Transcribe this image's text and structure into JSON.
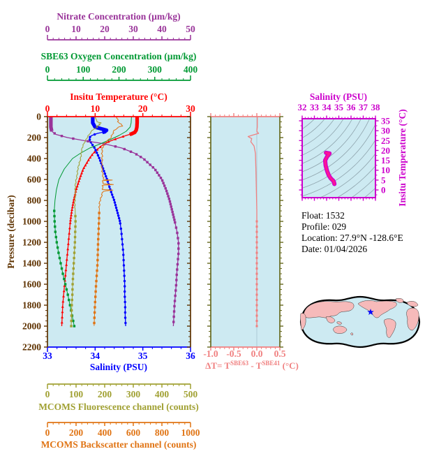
{
  "colors": {
    "background": "#ffffff",
    "plot_bg": "#cdeaf2",
    "nitrate": "#993399",
    "oxygen": "#009933",
    "temperature": "#ff0000",
    "salinity": "#0000ff",
    "pressure": "#5e3200",
    "fluorescence": "#a0a032",
    "backscatter": "#e07414",
    "delta_t": "#f08080",
    "mid_frame_sides": "#66691e",
    "zero_ref_line": "#aac8d4",
    "ts_axis": "#cc00cc",
    "ts_curve_core": "#ff1493",
    "ts_curve_edge": "#cc00cc",
    "ts_contour": "#8fa4ad",
    "land": "#f6baba",
    "ocean": "#cdeaf2",
    "map_outline": "#000000",
    "star": "#0000ff",
    "info_text": "#000000"
  },
  "axes": {
    "nitrate": {
      "title": "Nitrate Concentration (µm/kg)",
      "tick_labels": [
        "0",
        "10",
        "20",
        "30",
        "40",
        "50"
      ],
      "min": 0,
      "max": 50
    },
    "oxygen": {
      "title": "SBE63 Oxygen Concentration (µm/kg)",
      "tick_labels": [
        "0",
        "100",
        "200",
        "300",
        "400"
      ],
      "min": 0,
      "max": 400
    },
    "temperature": {
      "title": "Insitu Temperature (°C)",
      "tick_labels": [
        "0",
        "10",
        "20",
        "30"
      ],
      "min": 0,
      "max": 30
    },
    "salinity": {
      "title": "Salinity (PSU)",
      "tick_labels": [
        "33",
        "34",
        "35",
        "36"
      ],
      "min": 33,
      "max": 36
    },
    "pressure": {
      "title": "Pressure (decibar)",
      "tick_labels": [
        "0",
        "200",
        "400",
        "600",
        "800",
        "1000",
        "1200",
        "1400",
        "1600",
        "1800",
        "2000",
        "2200"
      ],
      "min": 0,
      "max": 2200
    },
    "fluorescence": {
      "title": "MCOMS Fluorescence channel (counts)",
      "tick_labels": [
        "0",
        "100",
        "200",
        "300",
        "400",
        "500"
      ],
      "min": 0,
      "max": 500
    },
    "backscatter": {
      "title": "MCOMS Backscatter channel (counts)",
      "tick_labels": [
        "0",
        "200",
        "400",
        "600",
        "800",
        "1000"
      ],
      "min": 0,
      "max": 1000
    },
    "delta_t": {
      "title_prefix": "ΔT= T",
      "title_sup1": "SBE63",
      "title_mid": " - T",
      "title_sup2": "SBE41",
      "title_suffix": " (°C)",
      "tick_labels": [
        "-1.0",
        "-0.5",
        "0.0",
        "0.5"
      ],
      "min": -1.0,
      "max": 0.5
    },
    "ts_salinity": {
      "title": "Salinity (PSU)",
      "tick_labels": [
        "32",
        "33",
        "34",
        "35",
        "36",
        "37",
        "38"
      ],
      "min": 32,
      "max": 38
    },
    "ts_temperature": {
      "title": "Insitu Temperature (°C)",
      "tick_labels": [
        "0",
        "5",
        "10",
        "15",
        "20",
        "25",
        "30",
        "35"
      ],
      "min": 0,
      "max": 35
    }
  },
  "float_info": {
    "line1": "Float:  1532",
    "line2": "Profile:  029",
    "line3": "Location:  27.9°N  -128.6°E",
    "line4": "Date:  01/04/2026"
  },
  "map": {
    "marker": "star",
    "marker_note": "float position 27.9N -128.6E"
  },
  "chart_data": [
    {
      "type": "line",
      "title": "Float 1532 profile 029 — properties vs pressure",
      "ylabel": "Pressure (decibar)",
      "ylim": [
        0,
        2200
      ],
      "series": [
        {
          "name": "Insitu Temperature",
          "axis": "temperature",
          "marker": "triangle",
          "pressure": [
            0,
            60,
            100,
            130,
            150,
            165,
            180,
            200,
            220,
            240,
            270,
            300,
            350,
            400,
            500,
            600,
            700,
            800,
            900,
            1000,
            1100,
            1200,
            1300,
            1400,
            1500,
            1600,
            1700,
            1800,
            1900,
            2000
          ],
          "values": [
            18.8,
            18.8,
            18.75,
            18.6,
            18.3,
            17.6,
            16.5,
            15.2,
            13.9,
            12.8,
            11.6,
            10.8,
            9.6,
            8.8,
            7.5,
            6.7,
            6.0,
            5.5,
            5.1,
            4.8,
            4.6,
            4.4,
            4.2,
            4.0,
            3.8,
            3.6,
            3.4,
            3.2,
            3.1,
            3.0
          ]
        },
        {
          "name": "Salinity",
          "axis": "salinity",
          "marker": "circle",
          "pressure": [
            0,
            60,
            100,
            115,
            130,
            145,
            160,
            180,
            200,
            230,
            260,
            300,
            350,
            400,
            500,
            600,
            700,
            800,
            900,
            1000,
            1100,
            1200,
            1300,
            1400,
            1500,
            1600,
            1700,
            1800,
            1900,
            2000
          ],
          "values": [
            33.95,
            33.95,
            34.0,
            34.12,
            34.24,
            34.2,
            34.05,
            33.93,
            33.88,
            33.89,
            33.93,
            33.99,
            34.04,
            34.09,
            34.17,
            34.25,
            34.32,
            34.4,
            34.46,
            34.52,
            34.55,
            34.57,
            34.59,
            34.6,
            34.61,
            34.62,
            34.62,
            34.63,
            34.63,
            34.64
          ]
        },
        {
          "name": "Nitrate",
          "axis": "nitrate",
          "marker": "square",
          "pressure": [
            0,
            60,
            100,
            140,
            170,
            200,
            230,
            260,
            300,
            350,
            400,
            500,
            600,
            700,
            800,
            900,
            1000,
            1100,
            1200,
            1300,
            1400,
            1500,
            1600,
            1700,
            1800,
            1900,
            2000
          ],
          "values": [
            1.2,
            1.2,
            1.2,
            1.5,
            3.0,
            7.0,
            13.0,
            20.0,
            26.0,
            30.5,
            33.5,
            37.5,
            40.0,
            41.5,
            42.7,
            43.6,
            44.5,
            45.3,
            45.8,
            45.8,
            45.5,
            45.2,
            45.0,
            44.7,
            44.4,
            44.2,
            44.0
          ]
        },
        {
          "name": "SBE63 Oxygen",
          "axis": "oxygen",
          "marker": "square",
          "pressure": [
            0,
            60,
            100,
            140,
            180,
            220,
            260,
            300,
            350,
            400,
            500,
            600,
            700,
            800,
            900,
            1000,
            1100,
            1200,
            1300,
            1400,
            1500,
            1600,
            1700,
            1800,
            1900,
            2000
          ],
          "values": [
            235,
            234,
            231,
            220,
            200,
            175,
            148,
            118,
            92,
            70,
            47,
            32,
            25,
            21,
            19,
            20,
            22,
            26,
            31,
            37,
            43,
            50,
            57,
            63,
            69,
            75
          ]
        },
        {
          "name": "MCOMS Fluorescence",
          "axis": "fluorescence",
          "marker": "square",
          "pressure": [
            0,
            40,
            55,
            62,
            70,
            80,
            90,
            100,
            115,
            130,
            160,
            200,
            250,
            300,
            350,
            400,
            500,
            600,
            700,
            800,
            900,
            1000,
            1100,
            1200,
            1300,
            1400,
            1500,
            1600,
            1700,
            1800,
            1900,
            2000
          ],
          "values": [
            168,
            170,
            178,
            192,
            174,
            186,
            170,
            179,
            164,
            158,
            149,
            138,
            128,
            122,
            118,
            115,
            107,
            100,
            97,
            96,
            97,
            98,
            97,
            96,
            94,
            92,
            90,
            88,
            87,
            85,
            84,
            83
          ]
        },
        {
          "name": "MCOMS Backscatter",
          "axis": "backscatter",
          "marker": "square",
          "pressure": [
            0,
            50,
            90,
            100,
            130,
            160,
            200,
            250,
            300,
            350,
            400,
            500,
            600,
            606,
            612,
            641,
            648,
            655,
            697,
            703,
            710,
            800,
            900,
            1000,
            1100,
            1200,
            1300,
            1400,
            1500,
            1600,
            1700,
            1800,
            1900,
            2000
          ],
          "values": [
            485,
            492,
            526,
            498,
            470,
            458,
            442,
            400,
            386,
            382,
            380,
            383,
            388,
            458,
            386,
            386,
            464,
            386,
            388,
            470,
            386,
            368,
            362,
            360,
            357,
            354,
            352,
            350,
            345,
            340,
            336,
            332,
            329,
            326
          ]
        }
      ]
    },
    {
      "type": "line",
      "title": "Temperature difference SBE63 - SBE41 vs pressure",
      "xlabel": "ΔT (°C)",
      "xlim": [
        -1.0,
        0.5
      ],
      "pressure": [
        0,
        100,
        140,
        160,
        175,
        190,
        210,
        240,
        280,
        350,
        500,
        700,
        900,
        1000,
        1100,
        1200,
        1300,
        1400,
        1500,
        1600,
        1700,
        1800,
        1900,
        2000
      ],
      "values": [
        0.01,
        0.01,
        0.0,
        0.04,
        -0.08,
        -0.19,
        -0.11,
        -0.13,
        -0.06,
        -0.03,
        -0.02,
        -0.01,
        0.0,
        0.0,
        0.0,
        0.0,
        0.0,
        0.0,
        0.0,
        0.0,
        0.0,
        0.0,
        0.0,
        0.0
      ]
    },
    {
      "type": "line",
      "title": "T-S diagram",
      "xlabel": "Salinity (PSU)",
      "ylabel": "Insitu Temperature (°C)",
      "xlim": [
        32,
        38
      ],
      "ylim": [
        0,
        35
      ],
      "salinity": [
        33.95,
        33.95,
        34.02,
        34.24,
        34.05,
        33.88,
        33.92,
        33.99,
        34.04,
        34.09,
        34.17,
        34.25,
        34.32,
        34.4,
        34.46,
        34.52,
        34.57,
        34.6,
        34.62,
        34.63,
        34.64
      ],
      "temperature": [
        18.8,
        18.8,
        18.7,
        18.5,
        17.0,
        15.0,
        12.4,
        10.8,
        9.6,
        8.8,
        7.5,
        6.7,
        6.0,
        5.5,
        5.1,
        4.8,
        4.4,
        4.0,
        3.6,
        3.2,
        3.0
      ]
    }
  ]
}
